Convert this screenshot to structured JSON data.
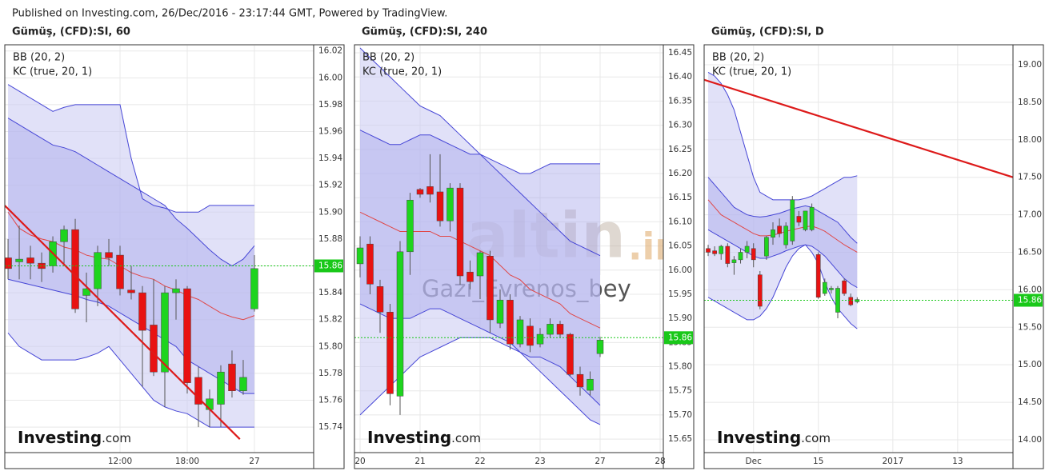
{
  "published": "Published on Investing.com, 26/Dec/2016 - 23:17:44 GMT, Powered by TradingView.",
  "chart_data": [
    {
      "type": "candlestick",
      "title": "Gümüş, (CFD):SI, 60",
      "indicators": [
        "BB (20, 2)",
        "KC (true, 20, 1)"
      ],
      "logo": [
        "Investing",
        ".com"
      ],
      "xlim": [
        -0.29,
        27.29
      ],
      "xticks": [
        {
          "value": 10,
          "label": "12:00"
        },
        {
          "value": 16,
          "label": "18:00"
        },
        {
          "value": 22,
          "label": "27"
        }
      ],
      "ylim": [
        15.721,
        16.024
      ],
      "yticks": [
        15.74,
        15.76,
        15.78,
        {
          "value": 15.8,
          "label": "15.80"
        },
        15.82,
        15.84,
        15.86,
        15.88,
        {
          "value": 15.9,
          "label": "15.90"
        },
        15.92,
        15.94,
        15.96,
        15.98,
        {
          "value": 16,
          "label": "16.00"
        },
        16.02
      ],
      "grid": true,
      "up_color": "#1ed41e",
      "down_color": "#e81212",
      "last_price": 15.86,
      "last_price_color": "#19c819",
      "candles": {
        "open": [
          15.866,
          15.863,
          15.866,
          15.862,
          15.86,
          15.878,
          15.887,
          15.838,
          15.843,
          15.87,
          15.868,
          15.842,
          15.84,
          15.816,
          15.781,
          15.84,
          15.843,
          15.777,
          15.753,
          15.757,
          15.787,
          15.767,
          15.828
        ],
        "high": [
          15.88,
          15.89,
          15.875,
          15.87,
          15.882,
          15.89,
          15.895,
          15.855,
          15.875,
          15.88,
          15.875,
          15.86,
          15.845,
          15.85,
          15.845,
          15.85,
          15.845,
          15.785,
          15.768,
          15.786,
          15.797,
          15.79,
          15.868
        ],
        "low": [
          15.85,
          15.85,
          15.85,
          15.848,
          15.855,
          15.86,
          15.825,
          15.818,
          15.83,
          15.86,
          15.838,
          15.835,
          15.77,
          15.778,
          15.755,
          15.82,
          15.765,
          15.74,
          15.74,
          15.74,
          15.762,
          15.764,
          15.826
        ],
        "close": [
          15.858,
          15.865,
          15.862,
          15.858,
          15.878,
          15.887,
          15.828,
          15.843,
          15.87,
          15.866,
          15.843,
          15.84,
          15.812,
          15.781,
          15.84,
          15.843,
          15.773,
          15.757,
          15.761,
          15.781,
          15.767,
          15.777,
          15.858
        ]
      },
      "bands": {
        "line_color": "#4646d6",
        "middle_color": "#e04848",
        "bb_fill": "#c9c9f2",
        "kc_fill": "#a9a9ec",
        "bb_upper": [
          15.995,
          15.99,
          15.985,
          15.98,
          15.975,
          15.978,
          15.98,
          15.98,
          15.98,
          15.98,
          15.98,
          15.94,
          15.91,
          15.905,
          15.903,
          15.9,
          15.9,
          15.9,
          15.905,
          15.905,
          15.905,
          15.905,
          15.905
        ],
        "kc_upper": [
          15.97,
          15.965,
          15.96,
          15.955,
          15.95,
          15.948,
          15.945,
          15.94,
          15.935,
          15.93,
          15.925,
          15.92,
          15.915,
          15.91,
          15.905,
          15.895,
          15.888,
          15.88,
          15.872,
          15.865,
          15.86,
          15.865,
          15.875
        ],
        "middle": [
          15.9,
          15.888,
          15.883,
          15.88,
          15.878,
          15.874,
          15.872,
          15.868,
          15.866,
          15.865,
          15.86,
          15.855,
          15.852,
          15.85,
          15.845,
          15.842,
          15.838,
          15.835,
          15.83,
          15.825,
          15.822,
          15.82,
          15.823
        ],
        "kc_lower": [
          15.85,
          15.848,
          15.846,
          15.844,
          15.842,
          15.84,
          15.838,
          15.835,
          15.833,
          15.83,
          15.825,
          15.82,
          15.815,
          15.81,
          15.805,
          15.8,
          15.79,
          15.785,
          15.78,
          15.775,
          15.77,
          15.765,
          15.765
        ],
        "bb_lower": [
          15.81,
          15.8,
          15.795,
          15.79,
          15.79,
          15.79,
          15.79,
          15.792,
          15.795,
          15.8,
          15.79,
          15.78,
          15.77,
          15.76,
          15.755,
          15.752,
          15.75,
          15.745,
          15.74,
          15.74,
          15.74,
          15.74,
          15.74
        ]
      },
      "trendline": {
        "color": "#dd1a1a",
        "x": [
          -0.3,
          20.7
        ],
        "values": [
          15.905,
          15.731
        ]
      }
    },
    {
      "type": "candlestick",
      "title": "Gümüş, (CFD):SI, 240",
      "indicators": [
        "BB (20, 2)",
        "KC (true, 20, 1)"
      ],
      "logo": [
        "Investing",
        ".com"
      ],
      "watermarks": [
        "altin",
        ".in",
        "Gazi_Evrenos_bey"
      ],
      "xlim": [
        -0.56,
        30.32
      ],
      "xticks": [
        {
          "value": 0,
          "label": "20"
        },
        {
          "value": 6,
          "label": "21"
        },
        {
          "value": 12,
          "label": "22"
        },
        {
          "value": 18,
          "label": "23"
        },
        {
          "value": 24,
          "label": "27"
        },
        {
          "value": 30,
          "label": "28"
        }
      ],
      "ylim": [
        15.622,
        16.465
      ],
      "yticks": [
        15.65,
        {
          "value": 15.7,
          "label": "15.70"
        },
        15.75,
        {
          "value": 15.8,
          "label": "15.80"
        },
        15.85,
        {
          "value": 15.9,
          "label": "15.90"
        },
        15.95,
        {
          "value": 16,
          "label": "16.00"
        },
        16.05,
        {
          "value": 16.1,
          "label": "16.10"
        },
        16.15,
        {
          "value": 16.2,
          "label": "16.20"
        },
        16.25,
        {
          "value": 16.3,
          "label": "16.30"
        },
        16.35,
        {
          "value": 16.4,
          "label": "16.40"
        },
        16.45
      ],
      "grid": true,
      "up_color": "#1ed41e",
      "down_color": "#e81212",
      "last_price": 15.86,
      "last_price_color": "#19c819",
      "candles": {
        "open": [
          16.013,
          16.054,
          15.966,
          15.913,
          15.739,
          16.038,
          16.167,
          16.173,
          16.162,
          16.102,
          16.17,
          15.996,
          15.988,
          16.029,
          15.89,
          15.938,
          15.847,
          15.884,
          15.847,
          15.867,
          15.888,
          15.867,
          15.784,
          15.751,
          15.827
        ],
        "high": [
          16.07,
          16.07,
          15.98,
          15.93,
          16.06,
          16.16,
          16.17,
          16.24,
          16.24,
          16.18,
          16.18,
          16.02,
          16.04,
          16.04,
          15.96,
          15.95,
          15.905,
          15.9,
          15.88,
          15.9,
          15.895,
          15.87,
          15.8,
          15.79,
          15.862
        ],
        "low": [
          15.985,
          15.95,
          15.87,
          15.72,
          15.7,
          15.99,
          16.15,
          16.14,
          16.09,
          16.08,
          15.97,
          15.96,
          15.94,
          15.87,
          15.88,
          15.835,
          15.84,
          15.83,
          15.84,
          15.86,
          15.86,
          15.78,
          15.74,
          15.74,
          15.82
        ],
        "close": [
          16.046,
          15.971,
          15.913,
          15.744,
          16.038,
          16.145,
          16.157,
          16.157,
          16.102,
          16.17,
          15.988,
          15.976,
          16.036,
          15.897,
          15.938,
          15.847,
          15.897,
          15.844,
          15.867,
          15.888,
          15.867,
          15.784,
          15.758,
          15.774,
          15.855
        ]
      },
      "bands": {
        "line_color": "#4646d6",
        "middle_color": "#e04848",
        "bb_fill": "#c9c9f2",
        "kc_fill": "#a9a9ec",
        "bb_upper": [
          16.46,
          16.44,
          16.42,
          16.4,
          16.38,
          16.36,
          16.34,
          16.33,
          16.32,
          16.3,
          16.28,
          16.26,
          16.24,
          16.22,
          16.2,
          16.18,
          16.16,
          16.14,
          16.12,
          16.1,
          16.08,
          16.06,
          16.05,
          16.04,
          16.03
        ],
        "kc_upper": [
          16.29,
          16.28,
          16.27,
          16.26,
          16.26,
          16.27,
          16.28,
          16.28,
          16.27,
          16.26,
          16.25,
          16.24,
          16.24,
          16.23,
          16.22,
          16.21,
          16.2,
          16.2,
          16.21,
          16.22,
          16.22,
          16.22,
          16.22,
          16.22,
          16.22
        ],
        "middle": [
          16.12,
          16.11,
          16.1,
          16.09,
          16.08,
          16.08,
          16.08,
          16.08,
          16.07,
          16.07,
          16.06,
          16.05,
          16.04,
          16.03,
          16.01,
          15.99,
          15.98,
          15.96,
          15.95,
          15.94,
          15.93,
          15.91,
          15.9,
          15.89,
          15.88
        ],
        "kc_lower": [
          15.93,
          15.92,
          15.91,
          15.9,
          15.9,
          15.9,
          15.91,
          15.92,
          15.92,
          15.91,
          15.9,
          15.89,
          15.88,
          15.87,
          15.86,
          15.85,
          15.83,
          15.81,
          15.79,
          15.77,
          15.75,
          15.73,
          15.71,
          15.69,
          15.68
        ],
        "bb_lower": [
          15.7,
          15.72,
          15.74,
          15.76,
          15.78,
          15.8,
          15.82,
          15.83,
          15.84,
          15.85,
          15.86,
          15.86,
          15.86,
          15.86,
          15.85,
          15.84,
          15.83,
          15.82,
          15.82,
          15.81,
          15.8,
          15.78,
          15.76,
          15.74,
          15.72
        ]
      }
    },
    {
      "type": "candlestick",
      "title": "Gümüş, (CFD):SI, D",
      "indicators": [
        "BB (20, 2)",
        "KC (true, 20, 1)"
      ],
      "logo": [
        "Investing",
        ".com"
      ],
      "xlim": [
        -0.62,
        47.04
      ],
      "xticks": [
        {
          "value": 7,
          "label": "Dec"
        },
        {
          "value": 17,
          "label": "15"
        },
        {
          "value": 28.5,
          "label": "2017"
        },
        {
          "value": 38.5,
          "label": "13"
        }
      ],
      "ylim": [
        13.829,
        19.256
      ],
      "yticks": [
        {
          "value": 14,
          "label": "14.00"
        },
        {
          "value": 14.5,
          "label": "14.50"
        },
        {
          "value": 15,
          "label": "15.00"
        },
        {
          "value": 15.5,
          "label": "15.50"
        },
        {
          "value": 16,
          "label": "16.00"
        },
        {
          "value": 16.5,
          "label": "16.50"
        },
        {
          "value": 17,
          "label": "17.00"
        },
        {
          "value": 17.5,
          "label": "17.50"
        },
        {
          "value": 18,
          "label": "18.00"
        },
        {
          "value": 18.5,
          "label": "18.50"
        },
        {
          "value": 19,
          "label": "19.00"
        }
      ],
      "grid": true,
      "up_color": "#1ed41e",
      "down_color": "#e81212",
      "last_price": 15.86,
      "last_price_color": "#19c819",
      "candles": {
        "open": [
          16.55,
          16.52,
          16.48,
          16.58,
          16.36,
          16.4,
          16.5,
          16.55,
          16.2,
          16.45,
          16.7,
          16.85,
          16.6,
          16.65,
          16.98,
          16.8,
          16.8,
          16.47,
          15.95,
          16.0,
          15.7,
          16.12,
          15.9,
          15.84
        ],
        "high": [
          16.6,
          16.58,
          16.6,
          16.62,
          16.45,
          16.55,
          16.65,
          16.62,
          16.25,
          16.72,
          16.9,
          16.95,
          16.9,
          17.25,
          17.05,
          17.05,
          17.15,
          16.5,
          16.15,
          16.05,
          16.05,
          16.15,
          15.95,
          15.9
        ],
        "low": [
          16.45,
          16.45,
          16.4,
          16.3,
          16.2,
          16.35,
          16.42,
          16.3,
          15.74,
          16.4,
          16.6,
          16.7,
          16.55,
          16.6,
          16.85,
          16.78,
          16.78,
          15.88,
          15.92,
          15.95,
          15.62,
          15.92,
          15.78,
          15.82
        ],
        "close": [
          16.5,
          16.48,
          16.58,
          16.35,
          16.4,
          16.5,
          16.58,
          16.4,
          15.78,
          16.7,
          16.8,
          16.75,
          16.85,
          17.2,
          16.9,
          17.05,
          17.1,
          15.9,
          16.1,
          16.02,
          16.02,
          15.95,
          15.8,
          15.87
        ]
      },
      "bands": {
        "line_color": "#4646d6",
        "middle_color": "#e04848",
        "bb_fill": "#c9c9f2",
        "kc_fill": "#a9a9ec",
        "bb_upper": [
          18.9,
          18.85,
          18.75,
          18.6,
          18.4,
          18.1,
          17.8,
          17.5,
          17.3,
          17.25,
          17.2,
          17.2,
          17.2,
          17.2,
          17.2,
          17.22,
          17.25,
          17.3,
          17.35,
          17.4,
          17.45,
          17.5,
          17.5,
          17.52
        ],
        "kc_upper": [
          17.5,
          17.4,
          17.3,
          17.2,
          17.1,
          17.05,
          17.0,
          16.98,
          16.97,
          16.98,
          17.0,
          17.02,
          17.05,
          17.08,
          17.1,
          17.12,
          17.1,
          17.05,
          17.0,
          16.95,
          16.9,
          16.8,
          16.7,
          16.62
        ],
        "middle": [
          17.2,
          17.1,
          17.0,
          16.95,
          16.9,
          16.85,
          16.8,
          16.75,
          16.72,
          16.72,
          16.73,
          16.75,
          16.78,
          16.8,
          16.82,
          16.84,
          16.85,
          16.82,
          16.78,
          16.72,
          16.66,
          16.6,
          16.55,
          16.5
        ],
        "kc_lower": [
          16.8,
          16.75,
          16.7,
          16.65,
          16.6,
          16.55,
          16.5,
          16.45,
          16.42,
          16.42,
          16.45,
          16.48,
          16.52,
          16.55,
          16.58,
          16.6,
          16.58,
          16.52,
          16.45,
          16.35,
          16.25,
          16.15,
          16.08,
          16.03
        ],
        "bb_lower": [
          15.9,
          15.85,
          15.8,
          15.75,
          15.7,
          15.65,
          15.6,
          15.6,
          15.65,
          15.75,
          15.9,
          16.1,
          16.3,
          16.45,
          16.55,
          16.6,
          16.5,
          16.35,
          16.1,
          15.9,
          15.75,
          15.65,
          15.55,
          15.48
        ]
      },
      "trendline": {
        "color": "#dd1a1a",
        "x": [
          -0.62,
          47.04
        ],
        "values": [
          18.8,
          17.5
        ]
      }
    }
  ]
}
